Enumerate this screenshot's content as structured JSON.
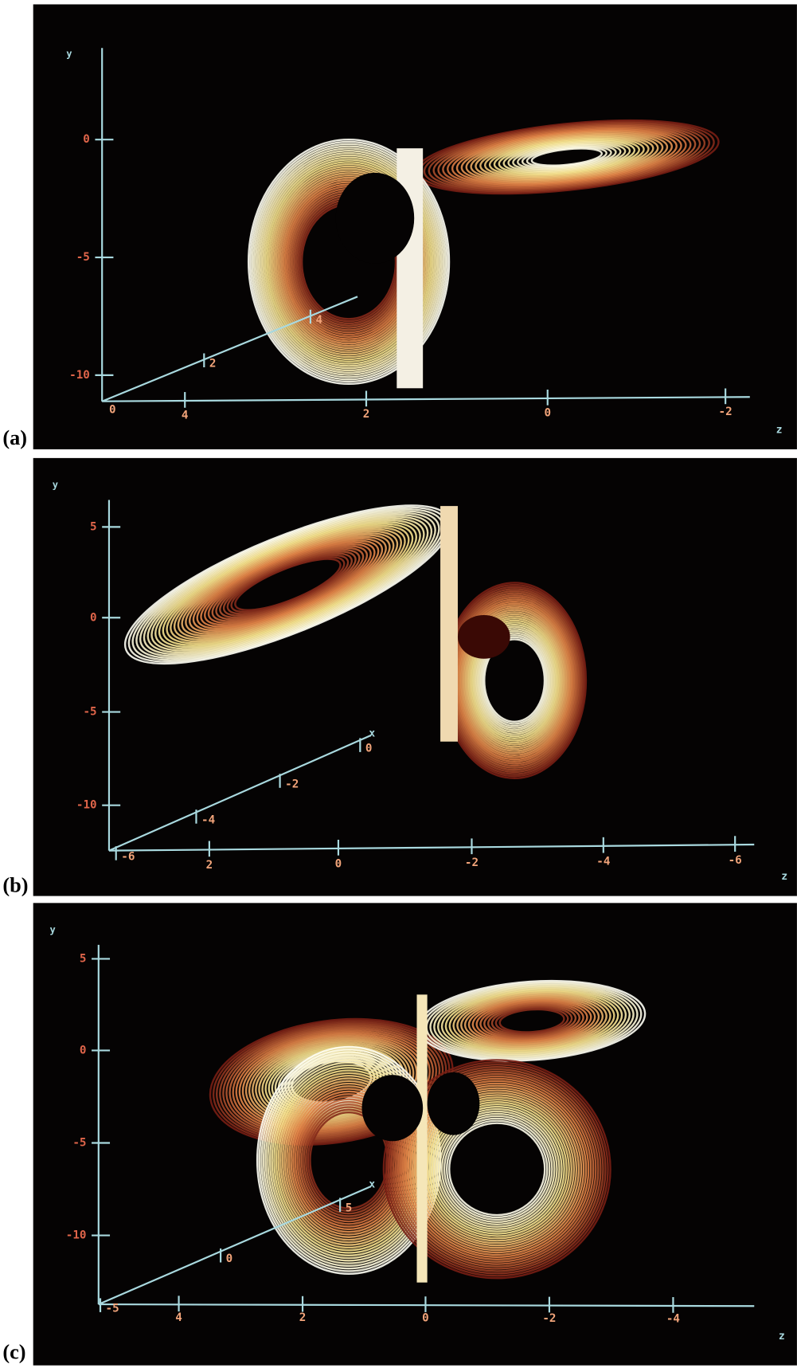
{
  "panels": [
    {
      "label": "(a)",
      "y_title": "y",
      "z_title": "z",
      "y_ticks": [
        "0",
        "-5",
        "-10"
      ],
      "z_ticks": [
        "4",
        "2",
        "0",
        "-2"
      ],
      "x_ticks": [
        "0",
        "2",
        "4"
      ]
    },
    {
      "label": "(b)",
      "y_title": "y",
      "z_title": "z",
      "y_ticks": [
        "5",
        "0",
        "-5",
        "-10"
      ],
      "z_ticks": [
        "2",
        "0",
        "-2",
        "-4",
        "-6"
      ],
      "x_ticks": [
        "-6",
        "-4",
        "-2",
        "0"
      ],
      "x_title": "x"
    },
    {
      "label": "(c)",
      "y_title": "y",
      "z_title": "z",
      "y_ticks": [
        "5",
        "0",
        "-5",
        "-10"
      ],
      "z_ticks": [
        "4",
        "2",
        "0",
        "-2",
        "-4"
      ],
      "x_ticks": [
        "-5",
        "0",
        "5"
      ],
      "x_title": "x"
    }
  ]
}
